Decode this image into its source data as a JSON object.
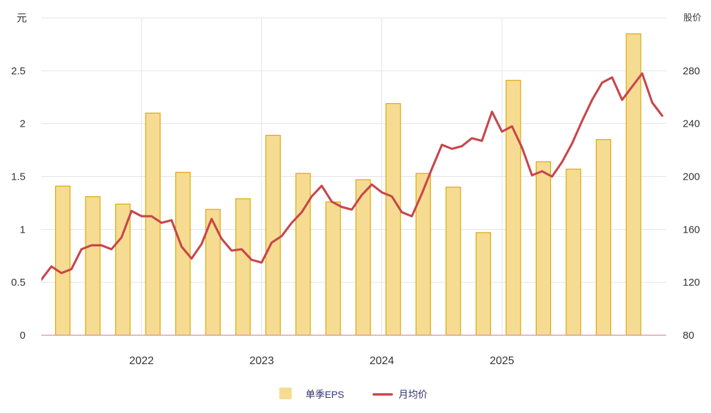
{
  "colors": {
    "bar_fill": "#F6DC93",
    "bar_stroke": "#DEA600",
    "line": "#C8464A",
    "grid": "#E3E3E3",
    "axis_text": "#333333",
    "legend_text": "#2F2F6E",
    "baseline": "#D9A0B0"
  },
  "chart_data": {
    "type": "bar",
    "left_axis_unit": "元",
    "right_axis_unit": "股价",
    "x_ticks": [
      "2022",
      "2023",
      "2024",
      "2025"
    ],
    "y_left": {
      "min": 0,
      "max": 3,
      "ticks": [
        "0",
        "0.5",
        "1",
        "1.5",
        "2",
        "2.5"
      ]
    },
    "y_right": {
      "min": 80,
      "max": 320,
      "ticks": [
        "80",
        "120",
        "160",
        "200",
        "240",
        "280"
      ]
    },
    "legend": [
      {
        "label": "单季EPS",
        "kind": "bar"
      },
      {
        "label": "月均价",
        "kind": "line"
      }
    ],
    "bars": {
      "name": "单季EPS",
      "quarters": [
        "2021-Q2",
        "2021-Q3",
        "2021-Q4",
        "2022-Q1",
        "2022-Q2",
        "2022-Q3",
        "2022-Q4",
        "2023-Q1",
        "2023-Q2",
        "2023-Q3",
        "2023-Q4",
        "2024-Q1",
        "2024-Q2",
        "2024-Q3",
        "2024-Q4",
        "2025-Q1",
        "2025-Q2",
        "2025-Q3",
        "2025-Q4",
        "2026-Q1"
      ],
      "values": [
        1.41,
        1.31,
        1.24,
        2.1,
        1.54,
        1.19,
        1.29,
        1.89,
        1.53,
        1.26,
        1.47,
        2.19,
        1.53,
        1.4,
        0.97,
        2.41,
        1.64,
        1.57,
        1.85,
        2.85
      ]
    },
    "line": {
      "name": "月均价",
      "months": [
        "2021-03",
        "2021-04",
        "2021-05",
        "2021-06",
        "2021-07",
        "2021-08",
        "2021-09",
        "2021-10",
        "2021-11",
        "2021-12",
        "2022-01",
        "2022-02",
        "2022-03",
        "2022-04",
        "2022-05",
        "2022-06",
        "2022-07",
        "2022-08",
        "2022-09",
        "2022-10",
        "2022-11",
        "2022-12",
        "2023-01",
        "2023-02",
        "2023-03",
        "2023-04",
        "2023-05",
        "2023-06",
        "2023-07",
        "2023-08",
        "2023-09",
        "2023-10",
        "2023-11",
        "2023-12",
        "2024-01",
        "2024-02",
        "2024-03",
        "2024-04",
        "2024-05",
        "2024-06",
        "2024-07",
        "2024-08",
        "2024-09",
        "2024-10",
        "2024-11",
        "2024-12",
        "2025-01",
        "2025-02",
        "2025-03",
        "2025-04",
        "2025-05",
        "2025-06",
        "2025-07",
        "2025-08",
        "2025-09",
        "2025-10",
        "2025-11",
        "2025-12",
        "2026-01",
        "2026-02",
        "2026-03",
        "2026-04",
        "2026-05"
      ],
      "values": [
        122,
        132,
        127,
        130,
        145,
        148,
        148,
        145,
        154,
        174,
        170,
        170,
        165,
        167,
        147,
        138,
        149,
        168,
        153,
        144,
        145,
        137,
        135,
        150,
        155,
        165,
        173,
        185,
        193,
        181,
        177,
        175,
        186,
        194,
        188,
        185,
        173,
        170,
        187,
        206,
        224,
        221,
        223,
        229,
        227,
        249,
        234,
        238,
        222,
        201,
        204,
        200,
        211,
        225,
        242,
        258,
        271,
        275,
        258,
        268,
        278,
        256,
        246
      ]
    }
  }
}
